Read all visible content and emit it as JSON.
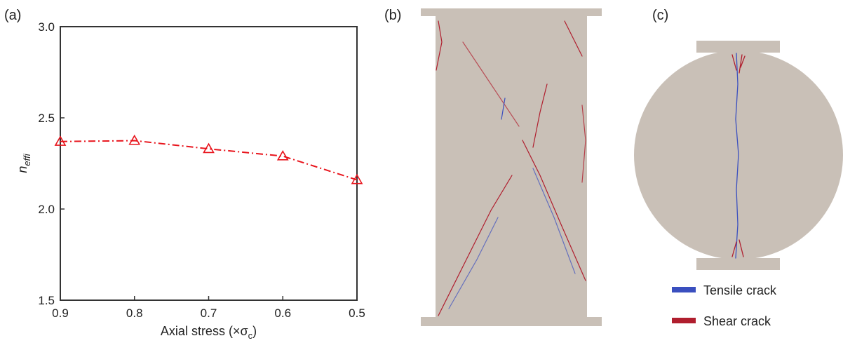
{
  "chart_data": {
    "type": "line",
    "marker": "triangle",
    "line_style": "dash-dot",
    "color": "#e8141c",
    "x": [
      0.9,
      0.8,
      0.7,
      0.6,
      0.5
    ],
    "values": [
      2.37,
      2.375,
      2.33,
      2.29,
      2.16
    ],
    "xlim": [
      0.9,
      0.5
    ],
    "xticks": [
      0.9,
      0.8,
      0.7,
      0.6,
      0.5
    ],
    "ylim": [
      1.5,
      3.0
    ],
    "yticks": [
      1.5,
      {
        "value": 2,
        "label": "2.0"
      },
      2.5,
      {
        "value": 3,
        "label": "3.0"
      }
    ],
    "x_label": {
      "text": "Axial stress (×σ",
      "subscript": "c",
      "end": ")"
    },
    "y_label": {
      "text": "n",
      "subscript": "effi"
    },
    "grid": false
  },
  "panels": {
    "a": "(a)",
    "b": "(b)",
    "c": "(c)"
  },
  "legend": [
    {
      "name": "Tensile crack",
      "color": "#3a4fbf"
    },
    {
      "name": "Shear crack",
      "color": "#b01e2e"
    }
  ]
}
